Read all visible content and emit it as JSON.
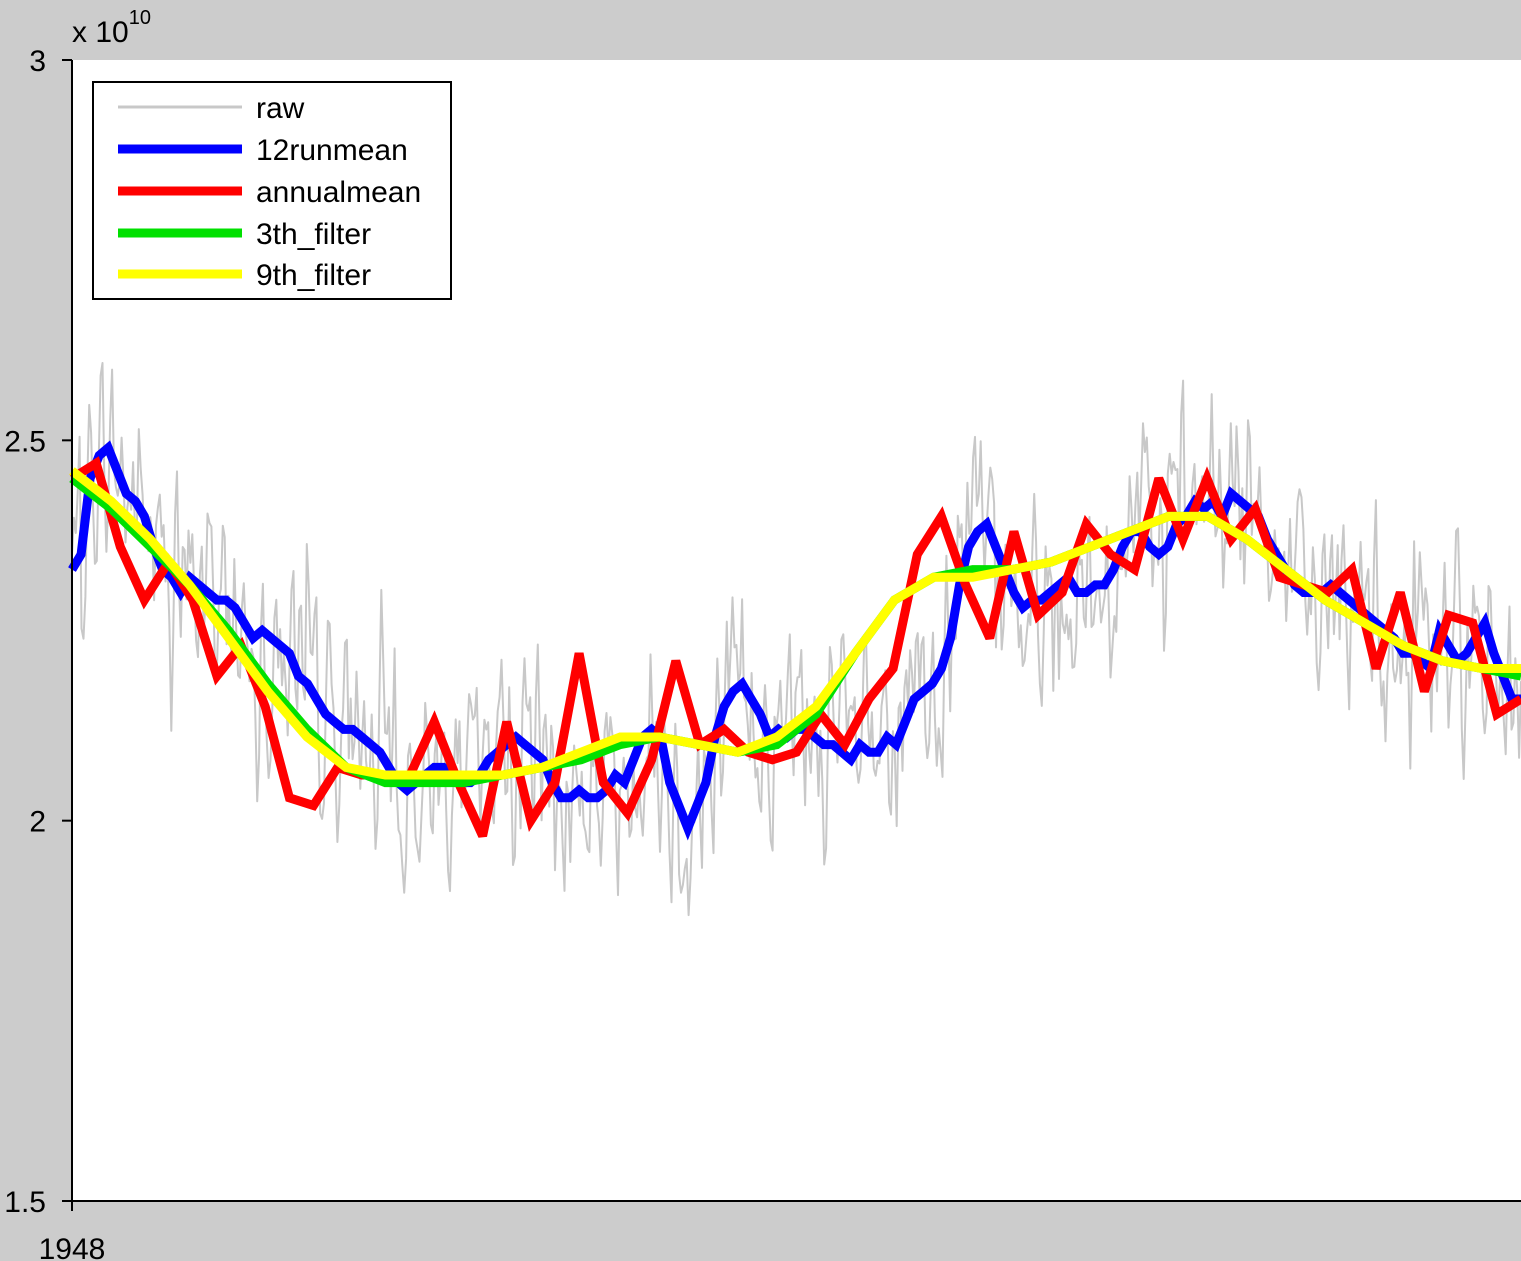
{
  "chart_data": {
    "type": "line",
    "y_exponent_label": "x 10",
    "y_exponent_power": "10",
    "yaxis": {
      "min": 1.5,
      "max": 3.0,
      "ticks": [
        1.5,
        2.0,
        2.5,
        3.0
      ],
      "tick_labels": [
        "1.5",
        "2",
        "2.5",
        "3"
      ]
    },
    "xaxis": {
      "tick_labels": [
        "1948"
      ]
    },
    "legend": {
      "position": "top-left"
    },
    "colors": {
      "raw": "#c8c8c8",
      "12runmean": "#0000ff",
      "annualmean": "#ff0000",
      "3th_filter": "#00e000",
      "9th_filter": "#ffff00",
      "frame": "#cccccc",
      "plot_bg": "#ffffff"
    },
    "series": [
      {
        "name": "raw",
        "seed": 7,
        "noise_amp": 0.17,
        "points": 760
      },
      {
        "name": "12runmean",
        "values": [
          2.33,
          2.35,
          2.45,
          2.48,
          2.49,
          2.46,
          2.43,
          2.42,
          2.4,
          2.36,
          2.33,
          2.32,
          2.3,
          2.32,
          2.31,
          2.3,
          2.29,
          2.29,
          2.28,
          2.26,
          2.24,
          2.25,
          2.24,
          2.23,
          2.22,
          2.19,
          2.18,
          2.16,
          2.14,
          2.13,
          2.12,
          2.12,
          2.11,
          2.1,
          2.09,
          2.07,
          2.05,
          2.04,
          2.05,
          2.06,
          2.07,
          2.07,
          2.06,
          2.05,
          2.05,
          2.06,
          2.08,
          2.09,
          2.1,
          2.11,
          2.1,
          2.09,
          2.08,
          2.05,
          2.03,
          2.03,
          2.04,
          2.03,
          2.03,
          2.04,
          2.06,
          2.05,
          2.08,
          2.11,
          2.12,
          2.11,
          2.05,
          2.02,
          1.99,
          2.02,
          2.05,
          2.11,
          2.15,
          2.17,
          2.18,
          2.16,
          2.14,
          2.11,
          2.12,
          2.11,
          2.12,
          2.12,
          2.11,
          2.1,
          2.1,
          2.09,
          2.08,
          2.1,
          2.09,
          2.09,
          2.11,
          2.1,
          2.13,
          2.16,
          2.17,
          2.18,
          2.2,
          2.24,
          2.31,
          2.36,
          2.38,
          2.39,
          2.36,
          2.33,
          2.3,
          2.28,
          2.29,
          2.29,
          2.3,
          2.31,
          2.32,
          2.3,
          2.3,
          2.31,
          2.31,
          2.33,
          2.36,
          2.38,
          2.38,
          2.36,
          2.35,
          2.36,
          2.39,
          2.4,
          2.42,
          2.41,
          2.42,
          2.4,
          2.43,
          2.42,
          2.41,
          2.4,
          2.37,
          2.35,
          2.33,
          2.31,
          2.3,
          2.3,
          2.3,
          2.31,
          2.3,
          2.29,
          2.28,
          2.27,
          2.26,
          2.25,
          2.24,
          2.22,
          2.22,
          2.21,
          2.2,
          2.25,
          2.23,
          2.21,
          2.22,
          2.24,
          2.26,
          2.22,
          2.19,
          2.16,
          2.16
        ]
      },
      {
        "name": "annualmean",
        "values": [
          2.45,
          2.47,
          2.36,
          2.29,
          2.34,
          2.29,
          2.19,
          2.23,
          2.15,
          2.03,
          2.02,
          2.07,
          2.06,
          2.06,
          2.06,
          2.13,
          2.05,
          1.98,
          2.13,
          2.0,
          2.05,
          2.22,
          2.05,
          2.01,
          2.08,
          2.21,
          2.1,
          2.12,
          2.09,
          2.08,
          2.09,
          2.14,
          2.1,
          2.16,
          2.2,
          2.35,
          2.4,
          2.31,
          2.24,
          2.38,
          2.27,
          2.3,
          2.39,
          2.35,
          2.33,
          2.45,
          2.37,
          2.45,
          2.37,
          2.41,
          2.32,
          2.31,
          2.3,
          2.33,
          2.2,
          2.3,
          2.17,
          2.27,
          2.26,
          2.14,
          2.16
        ]
      },
      {
        "name": "3th_filter",
        "values": [
          2.45,
          2.41,
          2.36,
          2.31,
          2.25,
          2.18,
          2.12,
          2.07,
          2.05,
          2.05,
          2.05,
          2.06,
          2.07,
          2.08,
          2.1,
          2.11,
          2.1,
          2.09,
          2.1,
          2.14,
          2.22,
          2.29,
          2.32,
          2.33,
          2.33,
          2.34,
          2.36,
          2.38,
          2.4,
          2.4,
          2.37,
          2.33,
          2.29,
          2.26,
          2.23,
          2.21,
          2.2,
          2.19
        ]
      },
      {
        "name": "9th_filter",
        "values": [
          2.46,
          2.42,
          2.37,
          2.31,
          2.24,
          2.17,
          2.11,
          2.07,
          2.06,
          2.06,
          2.06,
          2.06,
          2.07,
          2.09,
          2.11,
          2.11,
          2.1,
          2.09,
          2.11,
          2.15,
          2.22,
          2.29,
          2.32,
          2.32,
          2.33,
          2.34,
          2.36,
          2.38,
          2.4,
          2.4,
          2.37,
          2.33,
          2.29,
          2.26,
          2.23,
          2.21,
          2.2,
          2.2
        ]
      }
    ]
  }
}
